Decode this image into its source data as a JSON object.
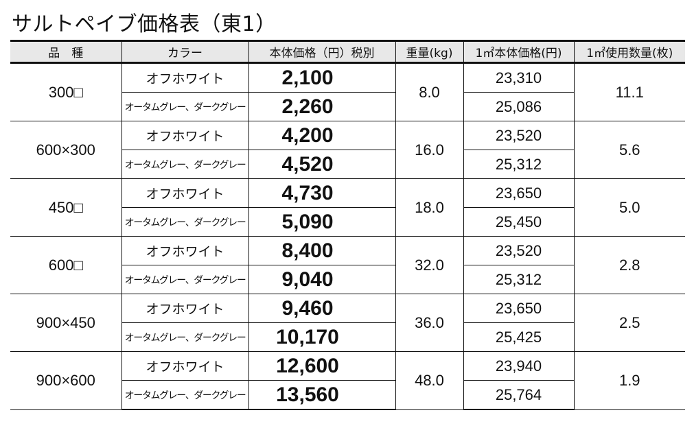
{
  "title": "サルトペイブ価格表（東1）",
  "table": {
    "headers": [
      "品　種",
      "カラー",
      "本体価格（円）税別",
      "重量(kg)",
      "1㎡本体価格(円)",
      "1㎡使用数量(枚)"
    ],
    "rows": [
      {
        "kind": "300□",
        "weight": "8.0",
        "qty": "11.1",
        "variants": [
          {
            "color": "オフホワイト",
            "price": "2,100",
            "unit_price": "23,310"
          },
          {
            "color": "オータムグレー、ダークグレー",
            "price": "2,260",
            "unit_price": "25,086"
          }
        ]
      },
      {
        "kind": "600×300",
        "weight": "16.0",
        "qty": "5.6",
        "variants": [
          {
            "color": "オフホワイト",
            "price": "4,200",
            "unit_price": "23,520"
          },
          {
            "color": "オータムグレー、ダークグレー",
            "price": "4,520",
            "unit_price": "25,312"
          }
        ]
      },
      {
        "kind": "450□",
        "weight": "18.0",
        "qty": "5.0",
        "variants": [
          {
            "color": "オフホワイト",
            "price": "4,730",
            "unit_price": "23,650"
          },
          {
            "color": "オータムグレー、ダークグレー",
            "price": "5,090",
            "unit_price": "25,450"
          }
        ]
      },
      {
        "kind": "600□",
        "weight": "32.0",
        "qty": "2.8",
        "variants": [
          {
            "color": "オフホワイト",
            "price": "8,400",
            "unit_price": "23,520"
          },
          {
            "color": "オータムグレー、ダークグレー",
            "price": "9,040",
            "unit_price": "25,312"
          }
        ]
      },
      {
        "kind": "900×450",
        "weight": "36.0",
        "qty": "2.5",
        "variants": [
          {
            "color": "オフホワイト",
            "price": "9,460",
            "unit_price": "23,650"
          },
          {
            "color": "オータムグレー、ダークグレー",
            "price": "10,170",
            "unit_price": "25,425"
          }
        ]
      },
      {
        "kind": "900×600",
        "weight": "48.0",
        "qty": "1.9",
        "variants": [
          {
            "color": "オフホワイト",
            "price": "12,600",
            "unit_price": "23,940"
          },
          {
            "color": "オータムグレー、ダークグレー",
            "price": "13,560",
            "unit_price": "25,764"
          }
        ]
      }
    ]
  },
  "colors": {
    "header_bg": "#e8e8e8",
    "border": "#111111"
  }
}
